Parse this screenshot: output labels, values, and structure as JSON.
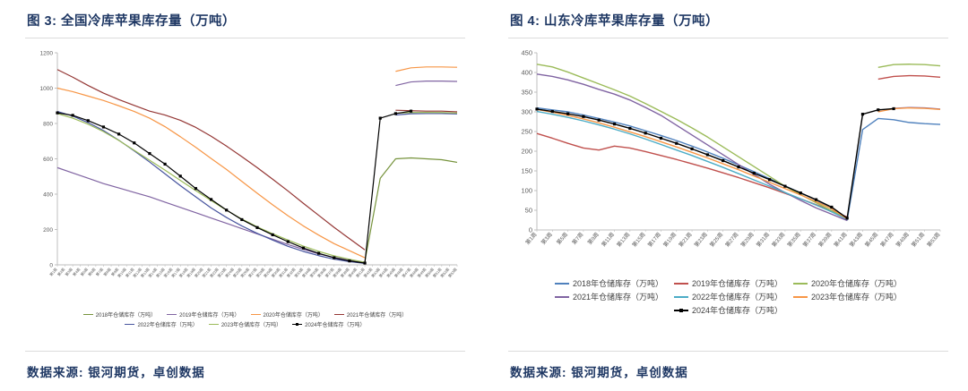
{
  "chart_data": [
    {
      "type": "line",
      "title": "图 3: 全国冷库苹果库存量（万吨）",
      "source": "数据来源: 银河期货，卓创数据",
      "xlabel": "",
      "ylabel": "",
      "ylim": [
        0,
        1200
      ],
      "ytick_step": 200,
      "grid": false,
      "legend_position": "bottom",
      "x_range": [
        1,
        53
      ],
      "x": [
        1,
        3,
        5,
        7,
        9,
        11,
        13,
        15,
        17,
        19,
        21,
        23,
        25,
        27,
        29,
        31,
        33,
        35,
        37,
        39,
        41,
        43,
        45,
        47,
        49,
        51,
        53
      ],
      "x_tick_weeks": [
        1,
        2,
        3,
        4,
        5,
        6,
        7,
        8,
        9,
        10,
        11,
        12,
        13,
        14,
        15,
        16,
        17,
        18,
        19,
        20,
        21,
        22,
        23,
        24,
        25,
        26,
        27,
        28,
        29,
        30,
        31,
        32,
        33,
        34,
        35,
        36,
        37,
        38,
        39,
        40,
        41,
        42,
        43,
        44,
        45,
        46,
        47,
        48,
        49,
        50,
        51,
        52,
        53
      ],
      "x_tick_labels": [
        "第1周",
        "第2周",
        "第3周",
        "第4周",
        "第5周",
        "第6周",
        "第7周",
        "第8周",
        "第9周",
        "第10周",
        "第11周",
        "第12周",
        "第13周",
        "第14周",
        "第15周",
        "第16周",
        "第17周",
        "第18周",
        "第19周",
        "第20周",
        "第21周",
        "第22周",
        "第23周",
        "第24周",
        "第25周",
        "第26周",
        "第27周",
        "第28周",
        "第29周",
        "第30周",
        "第31周",
        "第32周",
        "第33周",
        "第34周",
        "第35周",
        "第36周",
        "第37周",
        "第38周",
        "第39周",
        "第40周",
        "第41周",
        "第42周",
        "第43周",
        "第44周",
        "第45周",
        "第46周",
        "第47周",
        "第48周",
        "第49周",
        "第50周",
        "第51周",
        "第52周",
        "第53周"
      ],
      "series": [
        {
          "name": "2018年仓储库存（万吨）",
          "color": "#76933C",
          "marker": false,
          "values": [
            null,
            null,
            null,
            null,
            null,
            null,
            null,
            null,
            null,
            null,
            null,
            null,
            null,
            null,
            null,
            null,
            null,
            null,
            null,
            null,
            20,
            490,
            600,
            605,
            600,
            595,
            580
          ]
        },
        {
          "name": "2019年仓储库存（万吨）",
          "color": "#8064A2",
          "marker": false,
          "values": [
            550,
            520,
            490,
            460,
            435,
            410,
            385,
            355,
            325,
            295,
            265,
            235,
            205,
            175,
            145,
            115,
            88,
            62,
            42,
            26,
            14,
            null,
            1015,
            1035,
            1040,
            1040,
            1038
          ]
        },
        {
          "name": "2020年仓储库存（万吨）",
          "color": "#F79646",
          "marker": false,
          "values": [
            1000,
            980,
            955,
            930,
            900,
            868,
            830,
            782,
            725,
            665,
            602,
            540,
            472,
            405,
            340,
            278,
            220,
            168,
            120,
            80,
            40,
            null,
            1095,
            1115,
            1120,
            1120,
            1118
          ]
        },
        {
          "name": "2021年仓储库存（万吨）",
          "color": "#943634",
          "marker": false,
          "values": [
            1105,
            1062,
            1015,
            972,
            935,
            902,
            870,
            848,
            818,
            778,
            728,
            672,
            612,
            550,
            485,
            418,
            348,
            280,
            212,
            148,
            85,
            null,
            875,
            872,
            870,
            870,
            866
          ]
        },
        {
          "name": "2022年仓储库存（万吨）",
          "color": "#47549E",
          "marker": false,
          "values": [
            868,
            842,
            805,
            760,
            705,
            645,
            582,
            515,
            448,
            385,
            322,
            268,
            220,
            178,
            140,
            105,
            76,
            52,
            32,
            18,
            8,
            null,
            848,
            855,
            856,
            856,
            854
          ]
        },
        {
          "name": "2023年仓储库存（万吨）",
          "color": "#9BBB59",
          "marker": false,
          "values": [
            856,
            830,
            796,
            754,
            704,
            648,
            592,
            536,
            478,
            420,
            364,
            309,
            259,
            215,
            176,
            140,
            106,
            76,
            51,
            31,
            15,
            null,
            858,
            862,
            863,
            862,
            859
          ]
        },
        {
          "name": "2024年仓储库存（万吨）",
          "color": "#000000",
          "marker": true,
          "values": [
            860,
            846,
            816,
            780,
            740,
            690,
            630,
            570,
            502,
            432,
            370,
            310,
            256,
            211,
            170,
            131,
            95,
            65,
            40,
            22,
            10,
            830,
            856,
            870,
            null,
            null,
            null
          ]
        }
      ]
    },
    {
      "type": "line",
      "title": "图 4: 山东冷库苹果库存量（万吨）",
      "source": "数据来源: 银河期货，卓创数据",
      "xlabel": "",
      "ylabel": "",
      "ylim": [
        0,
        450
      ],
      "ytick_step": 50,
      "grid": false,
      "legend_position": "bottom",
      "x_range": [
        1,
        53
      ],
      "x": [
        1,
        3,
        5,
        7,
        9,
        11,
        13,
        15,
        17,
        19,
        21,
        23,
        25,
        27,
        29,
        31,
        33,
        35,
        37,
        39,
        41,
        43,
        45,
        47,
        49,
        51,
        53
      ],
      "x_tick_weeks": [
        1,
        3,
        5,
        7,
        9,
        11,
        13,
        15,
        17,
        19,
        21,
        23,
        25,
        27,
        29,
        31,
        33,
        35,
        37,
        39,
        41,
        43,
        45,
        47,
        49,
        51,
        53
      ],
      "x_tick_labels": [
        "第1周",
        "第3周",
        "第5周",
        "第7周",
        "第9周",
        "第11周",
        "第13周",
        "第15周",
        "第17周",
        "第19周",
        "第21周",
        "第23周",
        "第25周",
        "第27周",
        "第29周",
        "第31周",
        "第33周",
        "第35周",
        "第37周",
        "第39周",
        "第41周",
        "第43周",
        "第45周",
        "第47周",
        "第49周",
        "第51周",
        "第53周"
      ],
      "series": [
        {
          "name": "2018年仓储库存（万吨）",
          "color": "#4F81BD",
          "marker": false,
          "values": [
            310,
            305,
            300,
            292,
            283,
            274,
            264,
            252,
            240,
            227,
            213,
            198,
            182,
            165,
            148,
            130,
            112,
            94,
            76,
            55,
            25,
            255,
            283,
            280,
            273,
            270,
            268
          ]
        },
        {
          "name": "2019年仓储库存（万吨）",
          "color": "#C0504D",
          "marker": false,
          "values": [
            245,
            233,
            220,
            208,
            203,
            213,
            208,
            199,
            189,
            179,
            168,
            157,
            145,
            133,
            120,
            107,
            93,
            79,
            64,
            49,
            33,
            null,
            383,
            390,
            392,
            391,
            388
          ]
        },
        {
          "name": "2020年仓储库存（万吨）",
          "color": "#9BBB59",
          "marker": false,
          "values": [
            421,
            414,
            401,
            386,
            371,
            356,
            340,
            321,
            301,
            281,
            259,
            236,
            211,
            186,
            161,
            136,
            111,
            90,
            69,
            49,
            28,
            null,
            413,
            420,
            421,
            420,
            417
          ]
        },
        {
          "name": "2021年仓储库存（万吨）",
          "color": "#8064A2",
          "marker": false,
          "values": [
            396,
            390,
            381,
            370,
            357,
            345,
            330,
            311,
            291,
            266,
            241,
            216,
            191,
            166,
            141,
            116,
            95,
            75,
            56,
            40,
            24,
            null,
            null,
            309,
            311,
            310,
            307
          ]
        },
        {
          "name": "2022年仓储库存（万吨）",
          "color": "#4BACC6",
          "marker": false,
          "values": [
            301,
            294,
            286,
            277,
            267,
            256,
            244,
            231,
            217,
            203,
            189,
            174,
            159,
            143,
            127,
            111,
            95,
            79,
            63,
            46,
            27,
            null,
            null,
            null,
            null,
            null,
            null
          ]
        },
        {
          "name": "2023年仓储库存（万吨）",
          "color": "#F79646",
          "marker": false,
          "values": [
            306,
            299,
            291,
            282,
            272,
            261,
            249,
            237,
            224,
            211,
            197,
            183,
            168,
            153,
            137,
            121,
            105,
            89,
            72,
            54,
            28,
            null,
            300,
            308,
            310,
            309,
            306
          ]
        },
        {
          "name": "2024年仓储库存（万吨）",
          "color": "#000000",
          "marker": true,
          "values": [
            307,
            301,
            295,
            288,
            279,
            269,
            258,
            246,
            233,
            220,
            206,
            191,
            176,
            160,
            144,
            128,
            111,
            94,
            77,
            58,
            30,
            294,
            305,
            308,
            null,
            null,
            null
          ]
        }
      ]
    }
  ]
}
